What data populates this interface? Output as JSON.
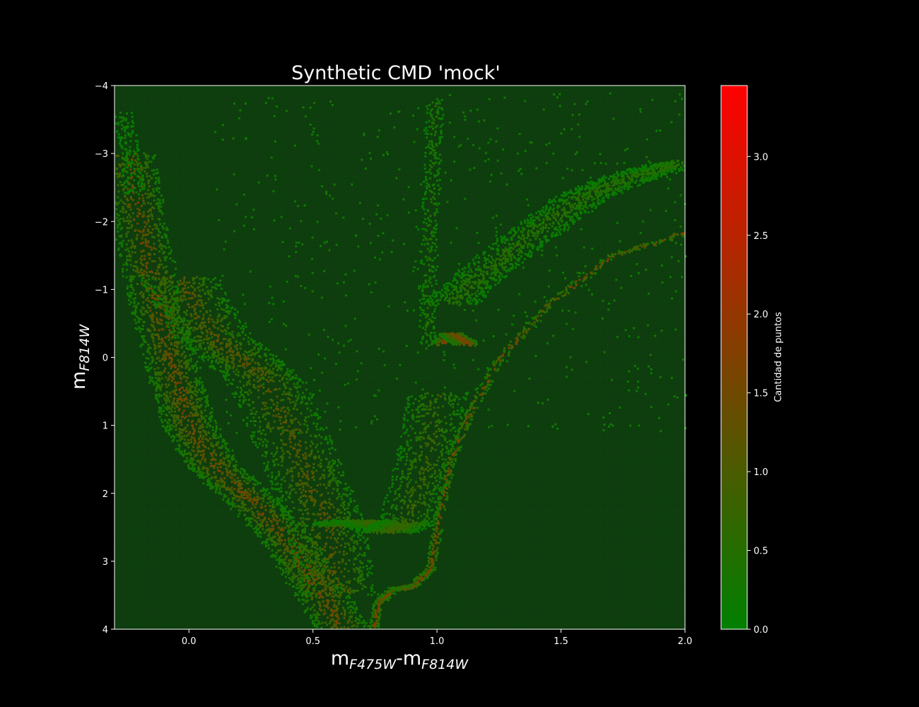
{
  "chart_data": {
    "type": "heatmap",
    "title": "Synthetic CMD 'mock'",
    "xlabel": {
      "main": "m",
      "sub1": "F475W",
      "sep": "-m",
      "sub2": "F814W"
    },
    "ylabel": {
      "main": "m",
      "sub": "F814W"
    },
    "xlim": [
      -0.3,
      2.0
    ],
    "ylim": [
      -4,
      4
    ],
    "y_inverted": true,
    "x_ticks": [
      "0.0",
      "0.5",
      "1.0",
      "1.5",
      "2.0"
    ],
    "y_ticks": [
      "-4",
      "-3",
      "-2",
      "-1",
      "0",
      "1",
      "2",
      "3",
      "4"
    ],
    "colorbar": {
      "label": "Cantidad de puntos",
      "range": [
        0.0,
        3.45
      ],
      "ticks": [
        "0.0",
        "0.5",
        "1.0",
        "1.5",
        "2.0",
        "2.5",
        "3.0"
      ],
      "color_low": "#008000",
      "color_high": "#ff0000"
    },
    "background_color": "#0d3a0d",
    "features": [
      {
        "name": "blue main sequence",
        "points": [
          [
            -0.25,
            -3.0
          ],
          [
            -0.2,
            -2.0
          ],
          [
            -0.15,
            -1.0
          ],
          [
            -0.1,
            -0.3
          ],
          [
            -0.05,
            0.4
          ],
          [
            0.0,
            1.0
          ],
          [
            0.1,
            1.6
          ],
          [
            0.25,
            2.1
          ],
          [
            0.4,
            2.7
          ],
          [
            0.5,
            3.3
          ],
          [
            0.62,
            4.0
          ]
        ],
        "level": 1.6
      },
      {
        "name": "upper main sequence",
        "points": [
          [
            -0.27,
            -3.6
          ],
          [
            -0.24,
            -3.0
          ],
          [
            -0.22,
            -2.4
          ]
        ],
        "level": 0.25
      },
      {
        "name": "main sequence envelope",
        "points": [
          [
            -0.05,
            -1.2
          ],
          [
            0.1,
            -0.3
          ],
          [
            0.3,
            0.3
          ],
          [
            0.45,
            1.5
          ],
          [
            0.55,
            2.5
          ],
          [
            0.6,
            3.5
          ]
        ],
        "level": 1.3
      },
      {
        "name": "blue loop sheet",
        "points": [
          [
            0.58,
            2.45
          ],
          [
            0.7,
            2.4
          ],
          [
            0.8,
            2.55
          ],
          [
            0.88,
            2.4
          ],
          [
            0.95,
            1.5
          ],
          [
            1.0,
            0.5
          ]
        ],
        "level": 0.9
      },
      {
        "name": "red giant branch",
        "points": [
          [
            0.96,
            -0.2
          ],
          [
            0.96,
            -1.0
          ],
          [
            0.97,
            -2.0
          ],
          [
            0.98,
            -3.0
          ],
          [
            0.99,
            -3.8
          ]
        ],
        "level": 0.5
      },
      {
        "name": "red clump",
        "points": [
          [
            1.02,
            -0.22
          ],
          [
            1.05,
            -0.35
          ],
          [
            1.08,
            -0.3
          ],
          [
            1.12,
            -0.2
          ]
        ],
        "level": 2.0
      },
      {
        "name": "supergiant branch",
        "points": [
          [
            1.05,
            -0.8
          ],
          [
            1.2,
            -1.3
          ],
          [
            1.4,
            -1.9
          ],
          [
            1.6,
            -2.4
          ],
          [
            1.8,
            -2.7
          ],
          [
            2.0,
            -2.9
          ]
        ],
        "level": 0.6
      },
      {
        "name": "old red giant branch",
        "points": [
          [
            0.74,
            4.0
          ],
          [
            0.76,
            3.6
          ],
          [
            0.82,
            3.4
          ],
          [
            0.9,
            3.35
          ],
          [
            0.97,
            3.1
          ],
          [
            1.0,
            2.5
          ],
          [
            1.05,
            1.5
          ],
          [
            1.13,
            0.8
          ],
          [
            1.25,
            0.0
          ],
          [
            1.45,
            -0.8
          ],
          [
            1.7,
            -1.5
          ],
          [
            2.0,
            -1.85
          ]
        ],
        "level": 1.8
      }
    ]
  }
}
